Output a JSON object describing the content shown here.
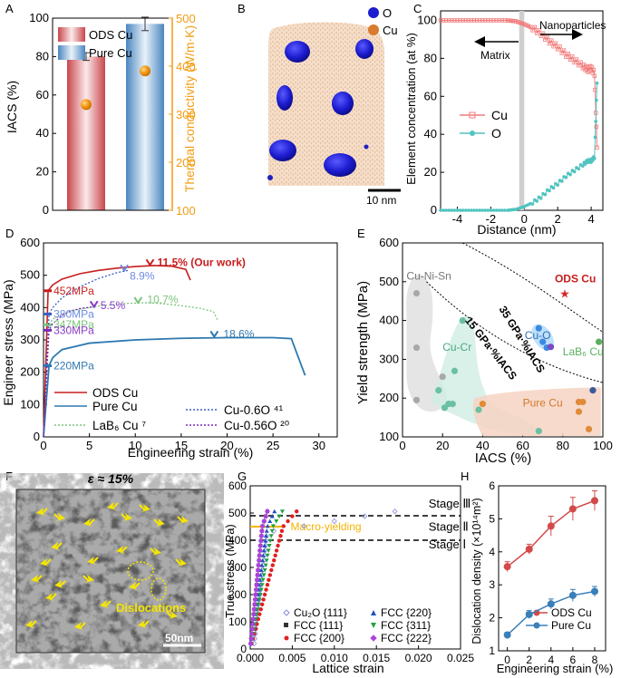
{
  "panel_labels": [
    "A",
    "B",
    "C",
    "D",
    "E",
    "F",
    "G",
    "H"
  ],
  "colors": {
    "ods": "#d24a4a",
    "pure": "#3a7fb8",
    "orange": "#f39c12",
    "cuo_pt": "#3a3ad6",
    "cu_pt": "#d97a2c"
  },
  "chart_data": [
    {
      "id": "A",
      "type": "bar",
      "categories": [
        "ODS Cu",
        "Pure Cu"
      ],
      "series": [
        {
          "name": "IACS",
          "values": [
            80,
            97
          ],
          "errors": [
            2,
            3.5
          ]
        },
        {
          "name": "Thermal conductivity",
          "values": [
            320,
            390
          ],
          "errors": [
            8,
            8
          ]
        }
      ],
      "ylabel": "IACS (%)",
      "ylim": [
        0,
        100
      ],
      "yticks": [
        "0",
        "20",
        "40",
        "60",
        "80",
        "100"
      ],
      "y2label": "Thermal conductivity (W/m·K)",
      "y2lim": [
        100,
        500
      ],
      "y2ticks": [
        "100",
        "200",
        "300",
        "400",
        "500"
      ]
    },
    {
      "id": "B",
      "type": "other",
      "legend": [
        {
          "label": "O"
        },
        {
          "label": "Cu"
        }
      ],
      "scale_bar": "10 nm"
    },
    {
      "id": "C",
      "type": "line",
      "xlabel": "Distance (nm)",
      "ylabel": "Element concentration (at %)",
      "xlim": [
        -5,
        4.7
      ],
      "ylim": [
        0,
        105
      ],
      "xticks": [
        "-4",
        "-2",
        "0",
        "2",
        "4"
      ],
      "yticks": [
        "0",
        "20",
        "40",
        "60",
        "80",
        "100"
      ],
      "annotations": [
        "Matrix",
        "Nanoparticles"
      ],
      "series": [
        {
          "name": "Cu",
          "x": [
            -5,
            -4,
            -3,
            -2,
            -1,
            -0.5,
            0,
            0.5,
            1,
            1.5,
            2,
            2.5,
            3,
            3.5,
            3.8,
            4,
            4.2,
            4.35
          ],
          "values": [
            100,
            100,
            100,
            100,
            100,
            99.5,
            98,
            96,
            93,
            89,
            86,
            82,
            79,
            76,
            74,
            75,
            72,
            33
          ]
        },
        {
          "name": "O",
          "x": [
            -5,
            -4,
            -3,
            -2,
            -1,
            -0.5,
            0,
            0.5,
            1,
            1.5,
            2,
            2.5,
            3,
            3.5,
            3.8,
            4,
            4.2,
            4.35
          ],
          "values": [
            0,
            0,
            0,
            0,
            0,
            0.5,
            2,
            4,
            7,
            11,
            14,
            18,
            21,
            24,
            26,
            26,
            28,
            67
          ]
        }
      ]
    },
    {
      "id": "D",
      "type": "line",
      "xlabel": "Engineering strain (%)",
      "ylabel": "Engineer stress (MPa)",
      "xlim": [
        0,
        32
      ],
      "ylim": [
        0,
        600
      ],
      "xticks": [
        "0",
        "5",
        "10",
        "15",
        "20",
        "25",
        "30"
      ],
      "yticks": [
        "0",
        "100",
        "200",
        "300",
        "400",
        "500",
        "600"
      ],
      "legend": [
        {
          "label": "ODS Cu"
        },
        {
          "label": "Pure Cu"
        },
        {
          "label": "LaB₆ Cu ⁷"
        },
        {
          "label": "Cu-0.6O ⁴¹"
        },
        {
          "label": "Cu-0.56O ²⁰"
        }
      ],
      "series": [
        {
          "name": "ODS Cu",
          "yield": 452,
          "x": [
            0,
            0.5,
            1,
            2,
            4,
            6,
            8,
            10,
            12,
            14,
            15.5,
            16
          ],
          "values": [
            0,
            452,
            470,
            488,
            505,
            515,
            522,
            527,
            530,
            528,
            518,
            485
          ]
        },
        {
          "name": "Pure Cu",
          "yield": 220,
          "x": [
            0,
            0.6,
            1,
            2,
            5,
            10,
            15,
            20,
            25,
            27,
            28.5
          ],
          "values": [
            0,
            220,
            245,
            270,
            290,
            300,
            305,
            307,
            307,
            304,
            190
          ]
        },
        {
          "name": "LaB6 Cu",
          "yield": 347,
          "x": [
            0,
            0.6,
            1,
            3,
            6,
            9,
            11,
            12,
            13,
            15,
            17,
            18.5,
            19
          ],
          "values": [
            0,
            347,
            365,
            390,
            405,
            413,
            415,
            414,
            412,
            406,
            398,
            388,
            360
          ]
        },
        {
          "name": "Cu-0.6O",
          "yield": 380,
          "x": [
            0,
            0.6,
            1,
            2,
            4,
            6,
            8,
            9.2
          ],
          "values": [
            0,
            380,
            400,
            430,
            465,
            490,
            508,
            515
          ]
        },
        {
          "name": "Cu-0.56O",
          "yield": 330,
          "x": [
            0,
            0.6,
            1,
            2,
            3,
            4,
            5,
            5.8
          ],
          "values": [
            0,
            330,
            350,
            375,
            390,
            397,
            401,
            402
          ]
        }
      ],
      "labels": [
        "452MPa",
        "380MPa",
        "347MPa",
        "330MPa",
        "220MPa",
        "11.5% (Our work)",
        "8.9%",
        "5.5%",
        "10.7%",
        "18.6%"
      ]
    },
    {
      "id": "E",
      "type": "scatter",
      "xlabel": "IACS (%)",
      "ylabel": "Yield strength (MPa)",
      "xlim": [
        0,
        100
      ],
      "ylim": [
        100,
        600
      ],
      "xticks": [
        "0",
        "20",
        "40",
        "60",
        "80",
        "100"
      ],
      "yticks": [
        "100",
        "200",
        "300",
        "400",
        "500",
        "600"
      ],
      "regions": [
        "Cu-Ni-Sn",
        "Cu-Cr",
        "Cu-O",
        "LaB₆ Cu",
        "Pure Cu",
        "ODS Cu"
      ],
      "contours": [
        "35 GPa·%IACS",
        "15 GPa·%IACS"
      ],
      "points": [
        {
          "group": "Cu-Ni-Sn",
          "x": 7,
          "y": 470
        },
        {
          "group": "Cu-Ni-Sn",
          "x": 7,
          "y": 330
        },
        {
          "group": "Cu-Ni-Sn",
          "x": 7,
          "y": 195
        },
        {
          "group": "Cu-Ni-Sn",
          "x": 20,
          "y": 255
        },
        {
          "group": "Cu-Cr",
          "x": 18,
          "y": 220
        },
        {
          "group": "Cu-Cr",
          "x": 21,
          "y": 175
        },
        {
          "group": "Cu-Cr",
          "x": 23,
          "y": 185
        },
        {
          "group": "Cu-Cr",
          "x": 26,
          "y": 270
        },
        {
          "group": "Cu-Cr",
          "x": 30,
          "y": 400
        },
        {
          "group": "Cu-Cr",
          "x": 38,
          "y": 170
        },
        {
          "group": "Cu-Cr",
          "x": 68,
          "y": 115
        },
        {
          "group": "Cu-Cr",
          "x": 25,
          "y": 185
        },
        {
          "group": "Cu-O",
          "x": 68,
          "y": 380
        },
        {
          "group": "Cu-O",
          "x": 70,
          "y": 345
        },
        {
          "group": "Cu-O",
          "x": 72,
          "y": 330
        },
        {
          "group": "LaB6",
          "x": 98,
          "y": 345
        },
        {
          "group": "Pure",
          "x": 40,
          "y": 185
        },
        {
          "group": "Pure",
          "x": 88,
          "y": 190
        },
        {
          "group": "Pure",
          "x": 88,
          "y": 165
        },
        {
          "group": "Pure",
          "x": 90,
          "y": 190
        },
        {
          "group": "Pure",
          "x": 93,
          "y": 120
        },
        {
          "group": "Other",
          "x": 95,
          "y": 220
        },
        {
          "group": "ODS",
          "x": 81,
          "y": 470
        }
      ]
    },
    {
      "id": "F",
      "type": "other",
      "title": "ε ≈ 15%",
      "label": "Dislocations",
      "scale_bar": "50nm"
    },
    {
      "id": "G",
      "type": "scatter",
      "xlabel": "Lattice strain",
      "ylabel": "True stress (MPa)",
      "xlim": [
        0,
        0.025
      ],
      "ylim": [
        0,
        600
      ],
      "xticks": [
        "0.000",
        "0.005",
        "0.010",
        "0.015",
        "0.020",
        "0.025"
      ],
      "yticks": [
        "0",
        "100",
        "200",
        "300",
        "400",
        "500",
        "600"
      ],
      "stages": [
        "Stage Ⅲ",
        "Stage Ⅱ",
        "Stage Ⅰ"
      ],
      "annotation": "Macro-yielding",
      "stage_lines": [
        490,
        400
      ],
      "macro_yield": 450,
      "legend": [
        {
          "label": "Cu₂O {111}"
        },
        {
          "label": "FCC {111}"
        },
        {
          "label": "FCC {200}"
        },
        {
          "label": "FCC {220}"
        },
        {
          "label": "FCC {311}"
        },
        {
          "label": "FCC {222}"
        }
      ]
    },
    {
      "id": "H",
      "type": "line",
      "xlabel": "Engineering strain (%)",
      "ylabel": "Dislocation density (×10¹⁴m²)",
      "xlim": [
        -0.8,
        9
      ],
      "ylim": [
        1,
        6
      ],
      "xticks": [
        "0",
        "2",
        "4",
        "6",
        "8"
      ],
      "yticks": [
        "1",
        "2",
        "3",
        "4",
        "5",
        "6"
      ],
      "series": [
        {
          "name": "ODS Cu",
          "x": [
            0,
            2,
            4,
            6,
            8
          ],
          "values": [
            3.55,
            4.08,
            4.78,
            5.3,
            5.55
          ],
          "errors": [
            0.15,
            0.15,
            0.3,
            0.35,
            0.3
          ]
        },
        {
          "name": "Pure Cu",
          "x": [
            0,
            2,
            4,
            6,
            8
          ],
          "values": [
            1.48,
            2.1,
            2.42,
            2.68,
            2.8
          ],
          "errors": [
            0.08,
            0.12,
            0.15,
            0.18,
            0.15
          ]
        }
      ]
    }
  ]
}
